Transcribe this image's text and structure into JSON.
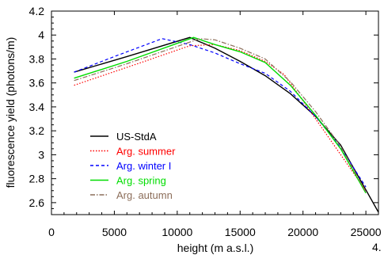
{
  "chart_data": {
    "type": "line",
    "xlabel": "height (m a.s.l.)",
    "ylabel": "fluorescence yield (photons/m)",
    "xlim": [
      0,
      26000
    ],
    "ylim": [
      2.5,
      4.2
    ],
    "x_ticks": [
      "0",
      "5000",
      "10000",
      "15000",
      "20000",
      "25000"
    ],
    "y_ticks": [
      "2.6",
      "2.8",
      "3",
      "3.2",
      "3.4",
      "3.6",
      "3.8",
      "4",
      "4.2"
    ],
    "corner_label": "4.",
    "legend_position": "bottom-left",
    "grid": false,
    "series": [
      {
        "name": "US-StdA",
        "color": "#000000",
        "dash": "solid",
        "x": [
          1800,
          6000,
          11000,
          13000,
          15000,
          17000,
          19000,
          21000,
          23000,
          26000
        ],
        "y": [
          3.69,
          3.82,
          3.98,
          3.89,
          3.78,
          3.66,
          3.51,
          3.32,
          3.08,
          2.52
        ]
      },
      {
        "name": "Arg. summer",
        "color": "#ff0000",
        "dash": "dotted",
        "x": [
          1800,
          6000,
          11000,
          13000,
          15000,
          17000,
          18500,
          20000,
          22000,
          25000
        ],
        "y": [
          3.58,
          3.73,
          3.91,
          3.92,
          3.87,
          3.78,
          3.67,
          3.45,
          3.15,
          2.7
        ]
      },
      {
        "name": "Arg. winter I",
        "color": "#0000ff",
        "dash": "dashed",
        "x": [
          1800,
          5000,
          8800,
          11000,
          13000,
          15000,
          17000,
          19000,
          21000,
          23000,
          25000
        ],
        "y": [
          3.69,
          3.82,
          3.97,
          3.92,
          3.85,
          3.76,
          3.68,
          3.53,
          3.32,
          3.06,
          2.73
        ]
      },
      {
        "name": "Arg. spring",
        "color": "#00dd00",
        "dash": "solid",
        "x": [
          1800,
          6000,
          11300,
          13000,
          15000,
          17000,
          19000,
          21000,
          23000,
          25000
        ],
        "y": [
          3.64,
          3.78,
          3.98,
          3.92,
          3.86,
          3.77,
          3.58,
          3.33,
          3.05,
          2.68
        ]
      },
      {
        "name": "Arg. autumn",
        "color": "#8c6e5a",
        "dash": "dashdot",
        "x": [
          1800,
          6000,
          11800,
          13000,
          15000,
          17000,
          19000,
          21000,
          23000,
          25000
        ],
        "y": [
          3.62,
          3.76,
          3.97,
          3.96,
          3.89,
          3.8,
          3.61,
          3.36,
          3.07,
          2.69
        ]
      }
    ]
  }
}
